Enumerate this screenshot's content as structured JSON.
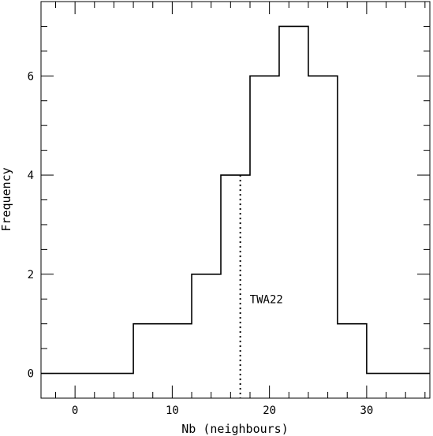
{
  "chart_data": {
    "type": "histogram",
    "title": "",
    "xlabel": "Nb (neighbours)",
    "ylabel": "Frequency",
    "xlim": [
      -3.5,
      36.5
    ],
    "ylim": [
      -0.5,
      7.5
    ],
    "x_ticks_major": [
      0,
      10,
      20,
      30
    ],
    "x_ticks_minor_step": 2,
    "y_ticks_major": [
      0,
      2,
      4,
      6
    ],
    "y_ticks_minor_step": 0.5,
    "x_tick_labels": [
      "0",
      "10",
      "20",
      "30"
    ],
    "y_tick_labels": [
      "0",
      "2",
      "4",
      "6"
    ],
    "bins": [
      {
        "x0": -3.5,
        "x1": 6,
        "count": 0
      },
      {
        "x0": 6,
        "x1": 12,
        "count": 1
      },
      {
        "x0": 12,
        "x1": 15,
        "count": 2
      },
      {
        "x0": 15,
        "x1": 18,
        "count": 4
      },
      {
        "x0": 18,
        "x1": 21,
        "count": 6
      },
      {
        "x0": 21,
        "x1": 24,
        "count": 7
      },
      {
        "x0": 24,
        "x1": 27,
        "count": 6
      },
      {
        "x0": 27,
        "x1": 30,
        "count": 1
      },
      {
        "x0": 30,
        "x1": 36.5,
        "count": 0
      }
    ],
    "marker": {
      "label": "TWA22",
      "x": 17,
      "y_top": 4,
      "label_y": 1.5,
      "style": "dotted"
    },
    "grid": false,
    "legend": "none"
  }
}
